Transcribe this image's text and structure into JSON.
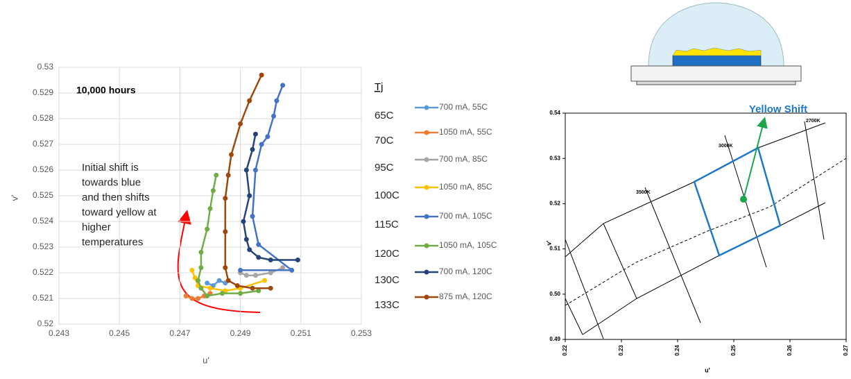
{
  "chart_data": [
    {
      "type": "scatter",
      "title": "10,000 hours",
      "annotation": [
        "Initial shift is",
        "towards blue",
        "and then shifts",
        "toward yellow at",
        "higher",
        "temperatures"
      ],
      "tj_header": "Tj",
      "x_label": "u'",
      "y_label": "v'",
      "xlim": [
        0.243,
        0.253
      ],
      "xticks": [
        0.243,
        0.245,
        0.247,
        0.249,
        0.251,
        0.253
      ],
      "ylim": [
        0.52,
        0.53
      ],
      "yticks": [
        0.52,
        0.521,
        0.522,
        0.523,
        0.524,
        0.525,
        0.526,
        0.527,
        0.528,
        0.529,
        0.53
      ],
      "grid": true,
      "series": [
        {
          "name": "700 mA, 55C",
          "tj": "65C",
          "color": "#5b9bd5",
          "x": [
            0.2479,
            0.2481,
            0.2483,
            0.2485
          ],
          "values": [
            0.5216,
            0.5215,
            0.5217,
            0.5216
          ]
        },
        {
          "name": "1050 mA, 55C",
          "tj": "70C",
          "color": "#ed7d31",
          "x": [
            0.2472,
            0.2474,
            0.2476,
            0.2478,
            0.248
          ],
          "values": [
            0.5211,
            0.521,
            0.521,
            0.5211,
            0.5212
          ]
        },
        {
          "name": "700 mA, 85C",
          "tj": "95C",
          "color": "#a5a5a5",
          "x": [
            0.249,
            0.2492,
            0.2495,
            0.25,
            0.2504
          ],
          "values": [
            0.522,
            0.5219,
            0.5219,
            0.522,
            0.5222
          ]
        },
        {
          "name": "1050 mA, 85C",
          "tj": "100C",
          "color": "#ffc000",
          "x": [
            0.2474,
            0.2475,
            0.2476,
            0.248,
            0.2485,
            0.249,
            0.2498
          ],
          "values": [
            0.5221,
            0.5218,
            0.5215,
            0.5214,
            0.5213,
            0.5214,
            0.5217
          ]
        },
        {
          "name": "700 mA, 105C",
          "tj": "115C",
          "color": "#4472c4",
          "x": [
            0.249,
            0.2507,
            0.2496,
            0.2494,
            0.2495,
            0.2497,
            0.2499,
            0.2501,
            0.2502,
            0.2504
          ],
          "values": [
            0.5221,
            0.5221,
            0.5231,
            0.5242,
            0.526,
            0.527,
            0.5273,
            0.5281,
            0.5287,
            0.5293
          ]
        },
        {
          "name": "1050 mA, 105C",
          "tj": "120C",
          "color": "#70ad47",
          "x": [
            0.2496,
            0.249,
            0.2484,
            0.2479,
            0.2477,
            0.2476,
            0.2477,
            0.2477,
            0.2479,
            0.248,
            0.2481,
            0.2482
          ],
          "values": [
            0.5213,
            0.5212,
            0.5212,
            0.5211,
            0.5214,
            0.5217,
            0.5222,
            0.5228,
            0.5237,
            0.5245,
            0.5252,
            0.5258
          ]
        },
        {
          "name": "700 mA, 120C",
          "tj": "130C",
          "color": "#264478",
          "x": [
            0.2509,
            0.25,
            0.2496,
            0.2493,
            0.2492,
            0.2491,
            0.2493,
            0.2492,
            0.2494,
            0.2495
          ],
          "values": [
            0.5225,
            0.5225,
            0.5226,
            0.5229,
            0.5233,
            0.524,
            0.525,
            0.526,
            0.5268,
            0.5274
          ]
        },
        {
          "name": "875 mA, 120C",
          "tj": "133C",
          "color": "#9e480e",
          "x": [
            0.25,
            0.2494,
            0.2489,
            0.2486,
            0.2485,
            0.2485,
            0.2485,
            0.2486,
            0.2487,
            0.249,
            0.2493,
            0.2497
          ],
          "values": [
            0.5214,
            0.5214,
            0.5215,
            0.5217,
            0.5222,
            0.5236,
            0.5249,
            0.5258,
            0.5266,
            0.5278,
            0.5287,
            0.5297
          ]
        }
      ]
    },
    {
      "type": "line",
      "x_label": "u'",
      "y_label": "v'",
      "annotations": [
        "Yellow Shift",
        "2700K",
        "3000K",
        "3500K"
      ],
      "xlim": [
        0.22,
        0.27
      ],
      "xticks": [
        0.22,
        0.23,
        0.24,
        0.25,
        0.26,
        0.27
      ],
      "ylim": [
        0.49,
        0.54
      ],
      "yticks": [
        0.49,
        {
          "value": 0.5,
          "label": "0.50"
        },
        0.51,
        0.52,
        0.53,
        0.54
      ]
    }
  ]
}
